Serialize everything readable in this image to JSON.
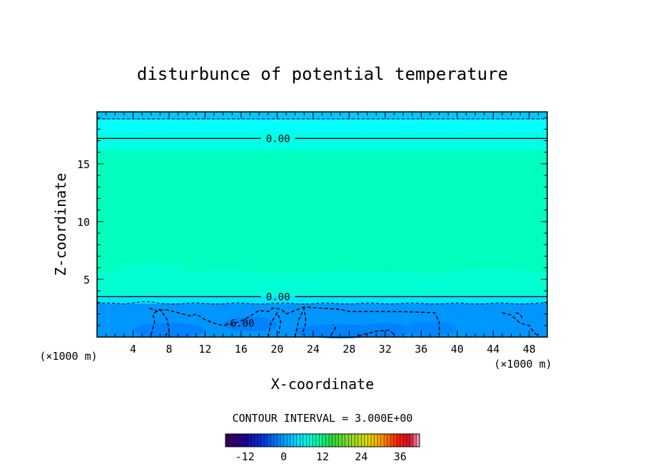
{
  "chart_data": {
    "type": "contour",
    "title": "disturbunce of potential temperature",
    "xlabel": "X-coordinate",
    "ylabel": "Z-coordinate",
    "x_unit": "(×1000 m)",
    "xlim": [
      0,
      50
    ],
    "ylim": [
      0,
      19.5
    ],
    "x_ticks": [
      "4",
      "8",
      "12",
      "16",
      "20",
      "24",
      "28",
      "32",
      "36",
      "40",
      "44",
      "48"
    ],
    "y_ticks": [
      "5",
      "10",
      "15"
    ],
    "contour_interval_text": "CONTOUR INTERVAL = 3.000E+00",
    "contours": [
      {
        "level": "0.00",
        "z": 17.2,
        "style": "solid"
      },
      {
        "level": "0.00",
        "z": 3.5,
        "style": "solid"
      },
      {
        "level": "-6.00",
        "style": "dashed"
      }
    ],
    "fill_bands": [
      {
        "z_from": 18.8,
        "z_to": 19.5,
        "color": "#00c8ff"
      },
      {
        "z_from": 17.8,
        "z_to": 18.8,
        "color": "#00ffff"
      },
      {
        "z_from": 16.2,
        "z_to": 17.8,
        "color": "#00ffe6"
      },
      {
        "z_from": 5.5,
        "z_to": 16.2,
        "color": "#00ffbe"
      },
      {
        "z_from": 3.6,
        "z_to": 5.5,
        "color": "#00ffd2"
      },
      {
        "z_from": 2.9,
        "z_to": 3.6,
        "color": "#00e6ff"
      },
      {
        "z_from": 0,
        "z_to": 2.9,
        "color": "#0096ff"
      }
    ],
    "colorbar": {
      "min": -18,
      "max": 42,
      "tick_labels": [
        "-12",
        "0",
        "12",
        "24",
        "36"
      ],
      "tick_values": [
        -12,
        0,
        12,
        24,
        36
      ]
    }
  }
}
